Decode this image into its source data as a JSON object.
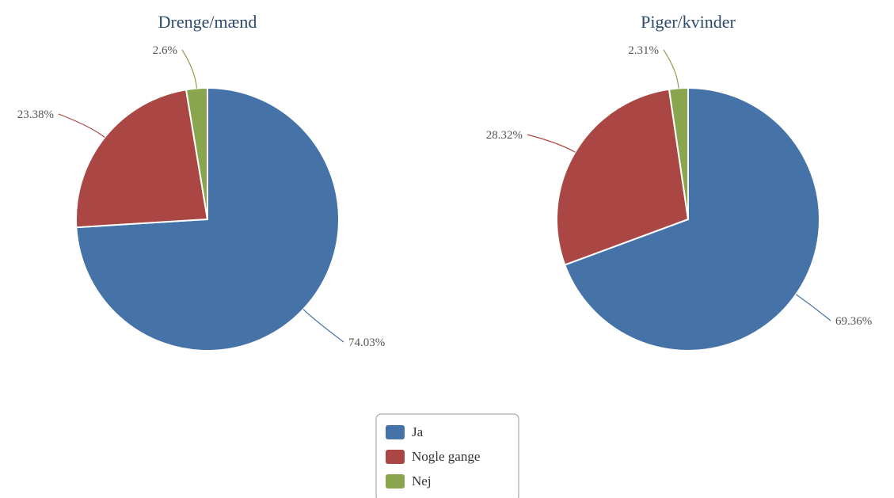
{
  "chart_data": [
    {
      "type": "pie",
      "title": "Drenge/mænd",
      "categories": [
        "Ja",
        "Nogle gange",
        "Nej"
      ],
      "values": [
        74.03,
        23.38,
        2.6
      ],
      "labels": [
        "74.03%",
        "23.38%",
        "2.6%"
      ],
      "colors": [
        "#4572a7",
        "#aa4643",
        "#89a54e"
      ]
    },
    {
      "type": "pie",
      "title": "Piger/kvinder",
      "categories": [
        "Ja",
        "Nogle gange",
        "Nej"
      ],
      "values": [
        69.36,
        28.32,
        2.31
      ],
      "labels": [
        "69.36%",
        "28.32%",
        "2.31%"
      ],
      "colors": [
        "#4572a7",
        "#aa4643",
        "#89a54e"
      ]
    }
  ],
  "legend": {
    "placement": "bottom-center",
    "items": [
      {
        "label": "Ja",
        "color": "#4572a7"
      },
      {
        "label": "Nogle gange",
        "color": "#aa4643"
      },
      {
        "label": "Nej",
        "color": "#89a54e"
      }
    ]
  }
}
